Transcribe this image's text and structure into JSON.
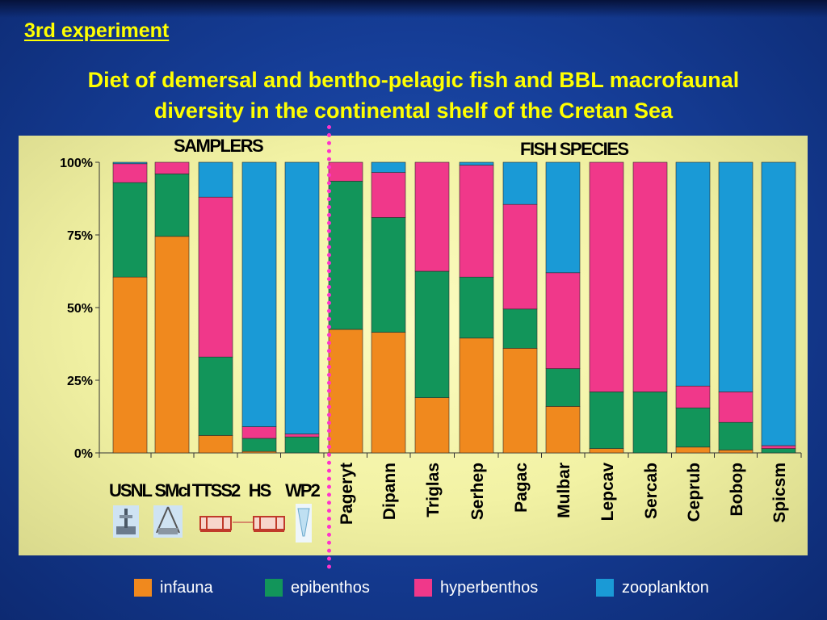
{
  "kicker": "3rd experiment",
  "title": {
    "line1": "Diet of demersal and bentho-pelagic fish and BBL macrofaunal",
    "line2": "diversity in the continental shelf of the Cretan Sea"
  },
  "groups": {
    "samplers": "SAMPLERS",
    "fish": "FISH SPECIES"
  },
  "colors": {
    "infauna": "#f0891e",
    "epibenthos": "#12955a",
    "hyperbenthos": "#f0388a",
    "zooplankton": "#1a9ad6",
    "divider": "#ff33cc"
  },
  "icons": [
    "sledge-sampler-icon",
    "grab-sampler-icon",
    "sledge-net-icon",
    "sledge-net-icon",
    "plankton-net-icon"
  ],
  "chart_data": {
    "type": "bar",
    "stacked": true,
    "ylim": [
      0,
      100
    ],
    "yticks": [
      "0%",
      "25%",
      "50%",
      "75%",
      "100%"
    ],
    "xlabel": "",
    "ylabel": "",
    "legend_position": "bottom",
    "categories": [
      "USNL",
      "SMcI",
      "TTSS2",
      "HS",
      "WP2",
      "Pageryt",
      "Dipann",
      "Triglas",
      "Serhep",
      "Pagac",
      "Mulbar",
      "Lepcav",
      "Sercab",
      "Ceprub",
      "Bobop",
      "Spicsm"
    ],
    "series": [
      {
        "name": "infauna",
        "values": [
          60.5,
          74.5,
          6,
          0.5,
          0,
          42.5,
          41.5,
          19,
          39.5,
          36,
          16,
          1.5,
          0,
          2,
          1,
          0
        ]
      },
      {
        "name": "epibenthos",
        "values": [
          32.5,
          21.5,
          27,
          4.5,
          5.5,
          51,
          39.5,
          43.5,
          21,
          13.5,
          13,
          19.5,
          21,
          13.5,
          9.5,
          1.5
        ]
      },
      {
        "name": "hyperbenthos",
        "values": [
          6.5,
          4,
          55,
          4,
          1,
          6.5,
          15.5,
          37.5,
          38.5,
          36,
          33,
          79,
          79,
          7.5,
          10.5,
          1
        ]
      },
      {
        "name": "zooplankton",
        "values": [
          0.5,
          0,
          12,
          91,
          93.5,
          0,
          3.5,
          0,
          1,
          14.5,
          38,
          0,
          0,
          77,
          79,
          97.5
        ]
      }
    ]
  }
}
